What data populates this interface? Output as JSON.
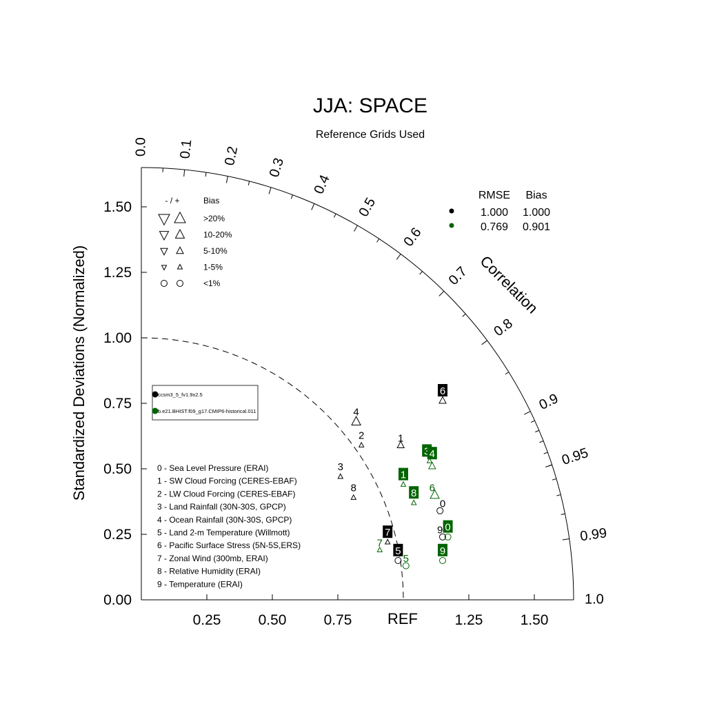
{
  "chart_data": {
    "type": "taylor",
    "title": "JJA: SPACE",
    "subtitle": "Reference Grids Used",
    "ylabel": "Standardized Deviations (Normalized)",
    "correlation_label": "Correlation",
    "ref_label": "REF",
    "y_ticks": [
      {
        "value": 0.0,
        "label": "0.00"
      },
      {
        "value": 0.25,
        "label": "0.25"
      },
      {
        "value": 0.5,
        "label": "0.50"
      },
      {
        "value": 0.75,
        "label": "0.75"
      },
      {
        "value": 1.0,
        "label": "1.00"
      },
      {
        "value": 1.25,
        "label": "1.25"
      },
      {
        "value": 1.5,
        "label": "1.50"
      }
    ],
    "x_ticks": [
      {
        "value": 0.25,
        "label": "0.25"
      },
      {
        "value": 0.5,
        "label": "0.50"
      },
      {
        "value": 0.75,
        "label": "0.75"
      },
      {
        "value": 1.25,
        "label": "1.25"
      },
      {
        "value": 1.5,
        "label": "1.50"
      }
    ],
    "std_max": 1.65,
    "ref_std": 1.0,
    "correlation_ticks": [
      {
        "value": 0.0,
        "label": "0.0"
      },
      {
        "value": 0.1,
        "label": "0.1"
      },
      {
        "value": 0.2,
        "label": "0.2"
      },
      {
        "value": 0.3,
        "label": "0.3"
      },
      {
        "value": 0.4,
        "label": "0.4"
      },
      {
        "value": 0.5,
        "label": "0.5"
      },
      {
        "value": 0.6,
        "label": "0.6"
      },
      {
        "value": 0.7,
        "label": "0.7"
      },
      {
        "value": 0.8,
        "label": "0.8"
      },
      {
        "value": 0.9,
        "label": "0.9"
      },
      {
        "value": 0.95,
        "label": "0.95"
      },
      {
        "value": 0.99,
        "label": "0.99"
      },
      {
        "value": 1.0,
        "label": "1.0"
      }
    ],
    "bias_legend": {
      "header_sign": "- / +",
      "header_bias": "Bias",
      "rows": [
        {
          "label": ">20%",
          "marker": "triangle",
          "size": 8
        },
        {
          "label": "10-20%",
          "marker": "triangle",
          "size": 6.5
        },
        {
          "label": "5-10%",
          "marker": "triangle",
          "size": 5
        },
        {
          "label": "1-5%",
          "marker": "triangle",
          "size": 3.5
        },
        {
          "label": "<1%",
          "marker": "circle",
          "size": 4.5
        }
      ]
    },
    "stats_header": {
      "rmse": "RMSE",
      "bias": "Bias"
    },
    "series": [
      {
        "name": "ccsm3_5_fv1.9x2.5",
        "color": "#000000",
        "rmse": "1.000",
        "bias": "1.000",
        "points": [
          {
            "id": "0",
            "x": 1.14,
            "y": 0.34,
            "marker": "circle",
            "size": 4.5,
            "dir": "up"
          },
          {
            "id": "1",
            "x": 0.99,
            "y": 0.59,
            "marker": "triangle",
            "size": 5,
            "dir": "up"
          },
          {
            "id": "2",
            "x": 0.84,
            "y": 0.59,
            "marker": "triangle",
            "size": 3.5,
            "dir": "up"
          },
          {
            "id": "3",
            "x": 0.76,
            "y": 0.47,
            "marker": "triangle",
            "size": 3.5,
            "dir": "up"
          },
          {
            "id": "4",
            "x": 0.82,
            "y": 0.68,
            "marker": "triangle",
            "size": 6.5,
            "dir": "up"
          },
          {
            "id": "5",
            "x": 0.98,
            "y": 0.15,
            "marker": "circle",
            "size": 4.5,
            "dir": "up"
          },
          {
            "id": "6",
            "x": 1.15,
            "y": 0.76,
            "marker": "triangle",
            "size": 5,
            "dir": "up"
          },
          {
            "id": "7",
            "x": 0.94,
            "y": 0.22,
            "marker": "triangle",
            "size": 3.5,
            "dir": "up"
          },
          {
            "id": "8",
            "x": 0.81,
            "y": 0.39,
            "marker": "triangle",
            "size": 3.5,
            "dir": "up"
          },
          {
            "id": "9",
            "x": 1.15,
            "y": 0.24,
            "marker": "circle",
            "size": 4.5,
            "dir": "up"
          }
        ]
      },
      {
        "name": "b.e21.BHIST.f09_g17.CMIP6-historical.011",
        "color": "#006400",
        "rmse": "0.769",
        "bias": "0.901",
        "points": [
          {
            "id": "0",
            "x": 1.17,
            "y": 0.24,
            "marker": "circle",
            "size": 4.5,
            "dir": "up"
          },
          {
            "id": "1",
            "x": 1.0,
            "y": 0.44,
            "marker": "triangle",
            "size": 3.5,
            "dir": "up"
          },
          {
            "id": "3",
            "x": 1.1,
            "y": 0.53,
            "marker": "triangle",
            "size": 3.5,
            "dir": "up"
          },
          {
            "id": "4",
            "x": 1.11,
            "y": 0.51,
            "marker": "triangle",
            "size": 5,
            "dir": "up"
          },
          {
            "id": "5",
            "x": 1.01,
            "y": 0.13,
            "marker": "circle",
            "size": 4.5,
            "dir": "up"
          },
          {
            "id": "6",
            "x": 1.12,
            "y": 0.4,
            "marker": "triangle",
            "size": 6.5,
            "dir": "up"
          },
          {
            "id": "7",
            "x": 0.91,
            "y": 0.19,
            "marker": "triangle",
            "size": 3.5,
            "dir": "up"
          },
          {
            "id": "8",
            "x": 1.04,
            "y": 0.37,
            "marker": "triangle",
            "size": 3.5,
            "dir": "up"
          },
          {
            "id": "9",
            "x": 1.15,
            "y": 0.15,
            "marker": "circle",
            "size": 4.5,
            "dir": "up"
          }
        ]
      }
    ],
    "label_marks": [
      {
        "text": "0",
        "series": 0,
        "x": 1.15,
        "y": 0.37,
        "boxed": false
      },
      {
        "text": "1",
        "series": 0,
        "x": 0.99,
        "y": 0.62,
        "boxed": false
      },
      {
        "text": "2",
        "series": 0,
        "x": 0.84,
        "y": 0.63,
        "boxed": false
      },
      {
        "text": "3",
        "series": 0,
        "x": 0.76,
        "y": 0.51,
        "boxed": false
      },
      {
        "text": "4",
        "series": 0,
        "x": 0.82,
        "y": 0.72,
        "boxed": false
      },
      {
        "text": "5",
        "series": 0,
        "x": 0.98,
        "y": 0.19,
        "boxed": true
      },
      {
        "text": "6",
        "series": 0,
        "x": 1.15,
        "y": 0.8,
        "boxed": true
      },
      {
        "text": "7",
        "series": 0,
        "x": 0.94,
        "y": 0.26,
        "boxed": true
      },
      {
        "text": "8",
        "series": 0,
        "x": 0.81,
        "y": 0.43,
        "boxed": false
      },
      {
        "text": "9",
        "series": 0,
        "x": 1.14,
        "y": 0.27,
        "boxed": false
      },
      {
        "text": "0",
        "series": 1,
        "x": 1.17,
        "y": 0.28,
        "boxed": true
      },
      {
        "text": "1",
        "series": 1,
        "x": 1.0,
        "y": 0.48,
        "boxed": true
      },
      {
        "text": "3",
        "series": 1,
        "x": 1.09,
        "y": 0.57,
        "boxed": true
      },
      {
        "text": "4",
        "series": 1,
        "x": 1.11,
        "y": 0.56,
        "boxed": true
      },
      {
        "text": "5",
        "series": 1,
        "x": 1.01,
        "y": 0.16,
        "boxed": false
      },
      {
        "text": "6",
        "series": 1,
        "x": 1.11,
        "y": 0.43,
        "boxed": false
      },
      {
        "text": "7",
        "series": 1,
        "x": 0.91,
        "y": 0.22,
        "boxed": false
      },
      {
        "text": "8",
        "series": 1,
        "x": 1.04,
        "y": 0.41,
        "boxed": true
      },
      {
        "text": "9",
        "series": 1,
        "x": 1.15,
        "y": 0.19,
        "boxed": true
      }
    ],
    "variable_legend": [
      "0 - Sea Level Pressure (ERAI)",
      "1 - SW Cloud Forcing (CERES-EBAF)",
      "2 - LW Cloud Forcing (CERES-EBAF)",
      "3 - Land Rainfall (30N-30S, GPCP)",
      "4 - Ocean Rainfall (30N-30S, GPCP)",
      "5 - Land 2-m Temperature (Willmott)",
      "6 - Pacific Surface Stress (5N-5S,ERS)",
      "7 - Zonal Wind (300mb, ERAI)",
      "8 - Relative Humidity (ERAI)",
      "9 - Temperature (ERAI)"
    ]
  }
}
